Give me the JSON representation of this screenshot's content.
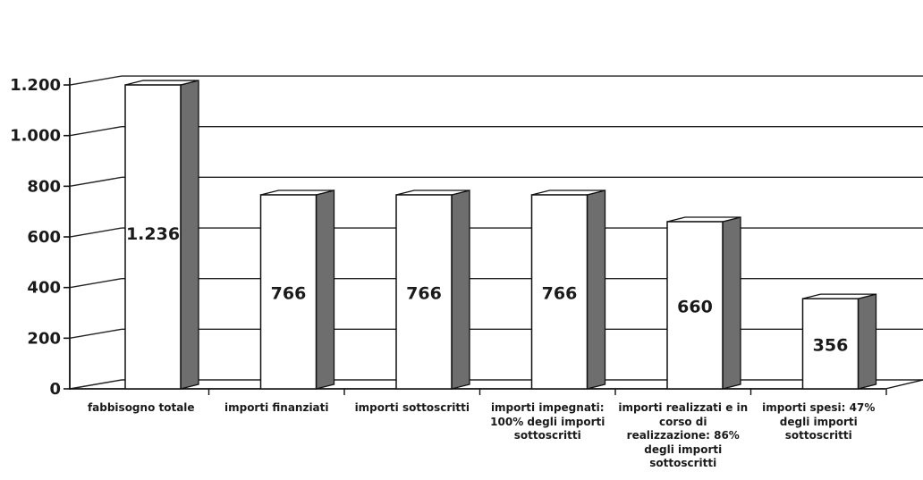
{
  "chart_data": {
    "type": "bar",
    "categories": [
      "fabbisogno totale",
      "importi finanziati",
      "importi sottoscritti",
      "importi impegnati:\n100% degli importi\nsottoscritti",
      "importi realizzati e in\ncorso di\nrealizzazione: 86%\ndegli importi\nsottoscritti",
      "importi spesi: 47%\ndegli importi\nsottoscritti"
    ],
    "values": [
      1236,
      766,
      766,
      766,
      660,
      356
    ],
    "value_labels": [
      "1.236",
      "766",
      "766",
      "766",
      "660",
      "356"
    ],
    "ylim": [
      0,
      1200
    ],
    "yticks": [
      0,
      200,
      400,
      600,
      800,
      1000,
      1200
    ],
    "ytick_labels": [
      "0",
      "200",
      "400",
      "600",
      "800",
      "1.000",
      "1.200"
    ],
    "grid": true,
    "style": "3d-column",
    "colors": {
      "bar_front": "#ffffff",
      "bar_side": "#6e6e6e",
      "bar_top": "#ffffff",
      "grid": "#222222"
    }
  }
}
